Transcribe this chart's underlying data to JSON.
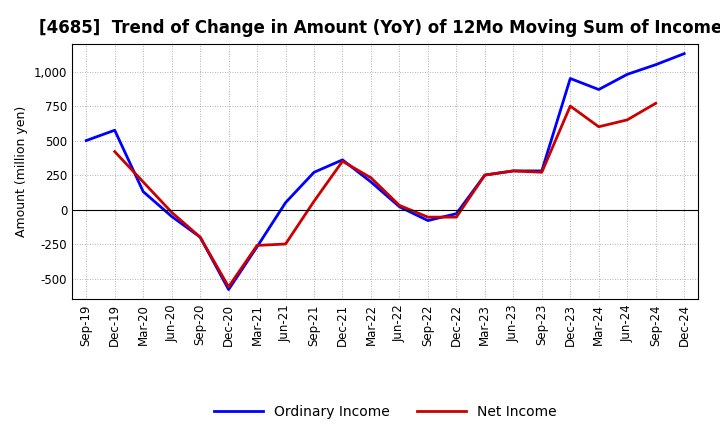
{
  "title": "[4685]  Trend of Change in Amount (YoY) of 12Mo Moving Sum of Incomes",
  "ylabel": "Amount (million yen)",
  "x_labels": [
    "Sep-19",
    "Dec-19",
    "Mar-20",
    "Jun-20",
    "Sep-20",
    "Dec-20",
    "Mar-21",
    "Jun-21",
    "Sep-21",
    "Dec-21",
    "Mar-22",
    "Jun-22",
    "Sep-22",
    "Dec-22",
    "Mar-23",
    "Jun-23",
    "Sep-23",
    "Dec-23",
    "Mar-24",
    "Jun-24",
    "Sep-24",
    "Dec-24"
  ],
  "ordinary_income": [
    500,
    575,
    130,
    -50,
    -200,
    -580,
    -270,
    50,
    270,
    360,
    200,
    20,
    -80,
    -30,
    250,
    280,
    280,
    950,
    870,
    980,
    1050,
    1130
  ],
  "net_income": [
    null,
    420,
    200,
    -20,
    -200,
    -560,
    -260,
    -250,
    60,
    350,
    230,
    30,
    -55,
    -55,
    250,
    280,
    270,
    750,
    600,
    650,
    770,
    null
  ],
  "ordinary_color": "#0000FF",
  "net_color": "#CC0000",
  "ylim": [
    -650,
    1200
  ],
  "yticks": [
    -500,
    -250,
    0,
    250,
    500,
    750,
    1000
  ],
  "background_color": "#ffffff",
  "grid_color": "#999999",
  "legend_labels": [
    "Ordinary Income",
    "Net Income"
  ],
  "line_width": 2.0,
  "title_fontsize": 12,
  "axis_fontsize": 9,
  "tick_fontsize": 8.5
}
